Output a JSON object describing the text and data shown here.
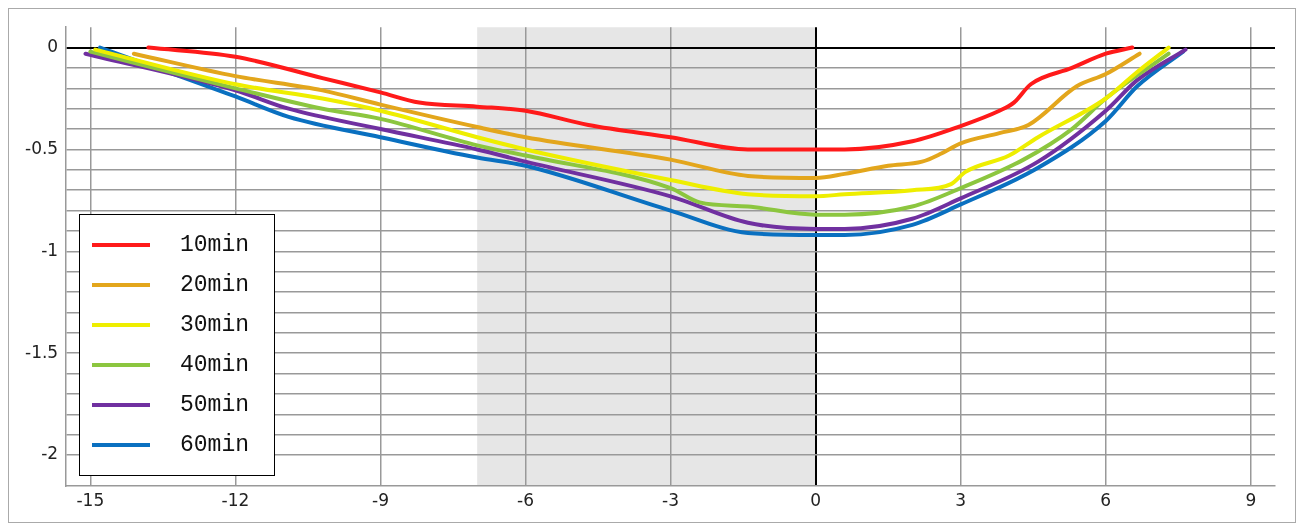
{
  "chart_data": {
    "type": "line",
    "xlim": [
      -15.5,
      9.5
    ],
    "ylim": [
      -2.15,
      0.1
    ],
    "xticks": [
      -15,
      -12,
      -9,
      -6,
      -3,
      0,
      3,
      6,
      9
    ],
    "yticks": [
      0,
      {
        "value": -0.1,
        "label": null
      },
      {
        "value": -0.2,
        "label": null
      },
      {
        "value": -0.3,
        "label": null
      },
      {
        "value": -0.4,
        "label": null
      },
      -0.5,
      {
        "value": -0.6,
        "label": null
      },
      {
        "value": -0.7,
        "label": null
      },
      {
        "value": -0.8,
        "label": null
      },
      {
        "value": -0.9,
        "label": null
      },
      -1,
      {
        "value": -1.1,
        "label": null
      },
      {
        "value": -1.2,
        "label": null
      },
      {
        "value": -1.3,
        "label": null
      },
      {
        "value": -1.4,
        "label": null
      },
      -1.5,
      {
        "value": -1.6,
        "label": null
      },
      {
        "value": -1.7,
        "label": null
      },
      {
        "value": -1.8,
        "label": null
      },
      {
        "value": -1.9,
        "label": null
      },
      -2
    ],
    "grid": true,
    "legend": "bottom left",
    "bands": [
      {
        "axis": "x",
        "from": -7,
        "to": 0,
        "color": "#e6e6e6"
      }
    ],
    "series": [
      {
        "name": "10min",
        "color": "#ff1a1a",
        "x": [
          -13.8,
          -12,
          -10.2,
          -9,
          -8.2,
          -7,
          -6,
          -4.7,
          -3,
          -1.4,
          0,
          0.6,
          2,
          3,
          3.8,
          4.1,
          4.45,
          5.3,
          6,
          6.55
        ],
        "values": [
          0,
          -0.045,
          -0.15,
          -0.22,
          -0.27,
          -0.29,
          -0.31,
          -0.38,
          -0.44,
          -0.5,
          -0.5,
          -0.5,
          -0.46,
          -0.385,
          -0.31,
          -0.27,
          -0.18,
          -0.1,
          -0.03,
          0
        ]
      },
      {
        "name": "20min",
        "color": "#e3a61c",
        "x": [
          -14.1,
          -12,
          -10.2,
          -9,
          -7,
          -6,
          -3,
          -1.4,
          0,
          0.6,
          1.5,
          2.2,
          2.6,
          3,
          3.8,
          4.4,
          5.4,
          6,
          6.7
        ],
        "values": [
          -0.03,
          -0.14,
          -0.21,
          -0.28,
          -0.39,
          -0.44,
          -0.55,
          -0.63,
          -0.64,
          -0.62,
          -0.58,
          -0.56,
          -0.52,
          -0.47,
          -0.42,
          -0.38,
          -0.19,
          -0.13,
          -0.03
        ]
      },
      {
        "name": "30min",
        "color": "#eeee00",
        "x": [
          -14.9,
          -12,
          -10.2,
          -9,
          -7,
          -6,
          -3,
          -1.4,
          0,
          0.6,
          2,
          2.8,
          3.1,
          4,
          4.6,
          6,
          6.65,
          7.3
        ],
        "values": [
          -0.01,
          -0.18,
          -0.25,
          -0.31,
          -0.44,
          -0.5,
          -0.65,
          -0.72,
          -0.73,
          -0.72,
          -0.7,
          -0.67,
          -0.61,
          -0.53,
          -0.44,
          -0.25,
          -0.12,
          0
        ]
      },
      {
        "name": "40min",
        "color": "#8cc63f",
        "x": [
          -15,
          -12,
          -10.2,
          -9,
          -7,
          -6,
          -3,
          -2.4,
          -1.4,
          0,
          0.6,
          2,
          3,
          4.3,
          5.3,
          6,
          7.3
        ],
        "values": [
          -0.02,
          -0.2,
          -0.3,
          -0.35,
          -0.48,
          -0.53,
          -0.69,
          -0.76,
          -0.78,
          -0.82,
          -0.82,
          -0.78,
          -0.69,
          -0.55,
          -0.4,
          -0.25,
          -0.03
        ]
      },
      {
        "name": "50min",
        "color": "#7030a0",
        "x": [
          -15.1,
          -12,
          -10.9,
          -9,
          -7,
          -6,
          -3,
          -1.4,
          0,
          0.6,
          2,
          3,
          4.6,
          6,
          6.65,
          7.65
        ],
        "values": [
          -0.03,
          -0.21,
          -0.3,
          -0.4,
          -0.5,
          -0.56,
          -0.73,
          -0.86,
          -0.89,
          -0.89,
          -0.84,
          -0.74,
          -0.56,
          -0.31,
          -0.16,
          -0.01
        ]
      },
      {
        "name": "60min",
        "color": "#0a70c0",
        "x": [
          -14.8,
          -12,
          -10.9,
          -9,
          -7,
          -6,
          -3,
          -1.4,
          0,
          0.6,
          2,
          3,
          4.6,
          6,
          6.65,
          7.6
        ],
        "values": [
          0,
          -0.24,
          -0.34,
          -0.44,
          -0.54,
          -0.58,
          -0.8,
          -0.91,
          -0.92,
          -0.92,
          -0.87,
          -0.77,
          -0.59,
          -0.36,
          -0.19,
          -0.02
        ]
      }
    ]
  }
}
